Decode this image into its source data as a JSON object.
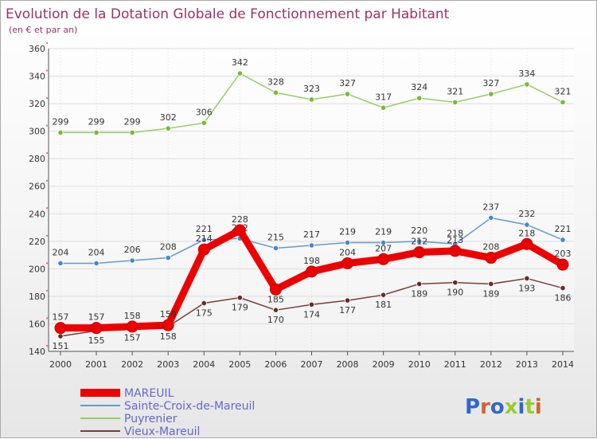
{
  "chart_data": {
    "type": "line",
    "title": "Evolution de la Dotation Globale de Fonctionnement par Habitant",
    "subtitle": "(en € et par an)",
    "xlabel": "",
    "ylabel": "",
    "ylim": [
      140,
      360
    ],
    "yticks": [
      140,
      160,
      180,
      200,
      220,
      240,
      260,
      280,
      300,
      320,
      340,
      360
    ],
    "grid": true,
    "legend_position": "bottom-left",
    "categories": [
      "2000",
      "2001",
      "2002",
      "2003",
      "2004",
      "2005",
      "2006",
      "2007",
      "2008",
      "2009",
      "2010",
      "2011",
      "2012",
      "2013",
      "2014"
    ],
    "series": [
      {
        "name": "Puyrenier",
        "color": "#99cc66",
        "marker": "#77bb33",
        "values": [
          299,
          299,
          299,
          302,
          306,
          342,
          328,
          323,
          327,
          317,
          324,
          321,
          327,
          334,
          321
        ]
      },
      {
        "name": "Sainte-Croix-de-Mareuil",
        "color": "#6699cc",
        "marker": "#4488cc",
        "values": [
          204,
          204,
          206,
          208,
          221,
          222,
          215,
          217,
          219,
          219,
          220,
          218,
          237,
          232,
          221
        ]
      },
      {
        "name": "Vieux-Mareuil",
        "color": "#7a3b3b",
        "marker": "#6a2a2a",
        "values": [
          151,
          155,
          157,
          158,
          175,
          179,
          170,
          174,
          177,
          181,
          189,
          190,
          189,
          193,
          186
        ]
      },
      {
        "name": "MAREUIL",
        "color": "#ee0000",
        "marker": "#ee0000",
        "values": [
          157,
          157,
          158,
          159,
          214,
          228,
          185,
          198,
          204,
          207,
          212,
          213,
          208,
          218,
          203
        ]
      }
    ],
    "label_colors": {
      "title": "#993366",
      "legend_text": "#6666cc",
      "axis_text": "#333333"
    }
  },
  "logo": {
    "text": "Proxiti"
  }
}
